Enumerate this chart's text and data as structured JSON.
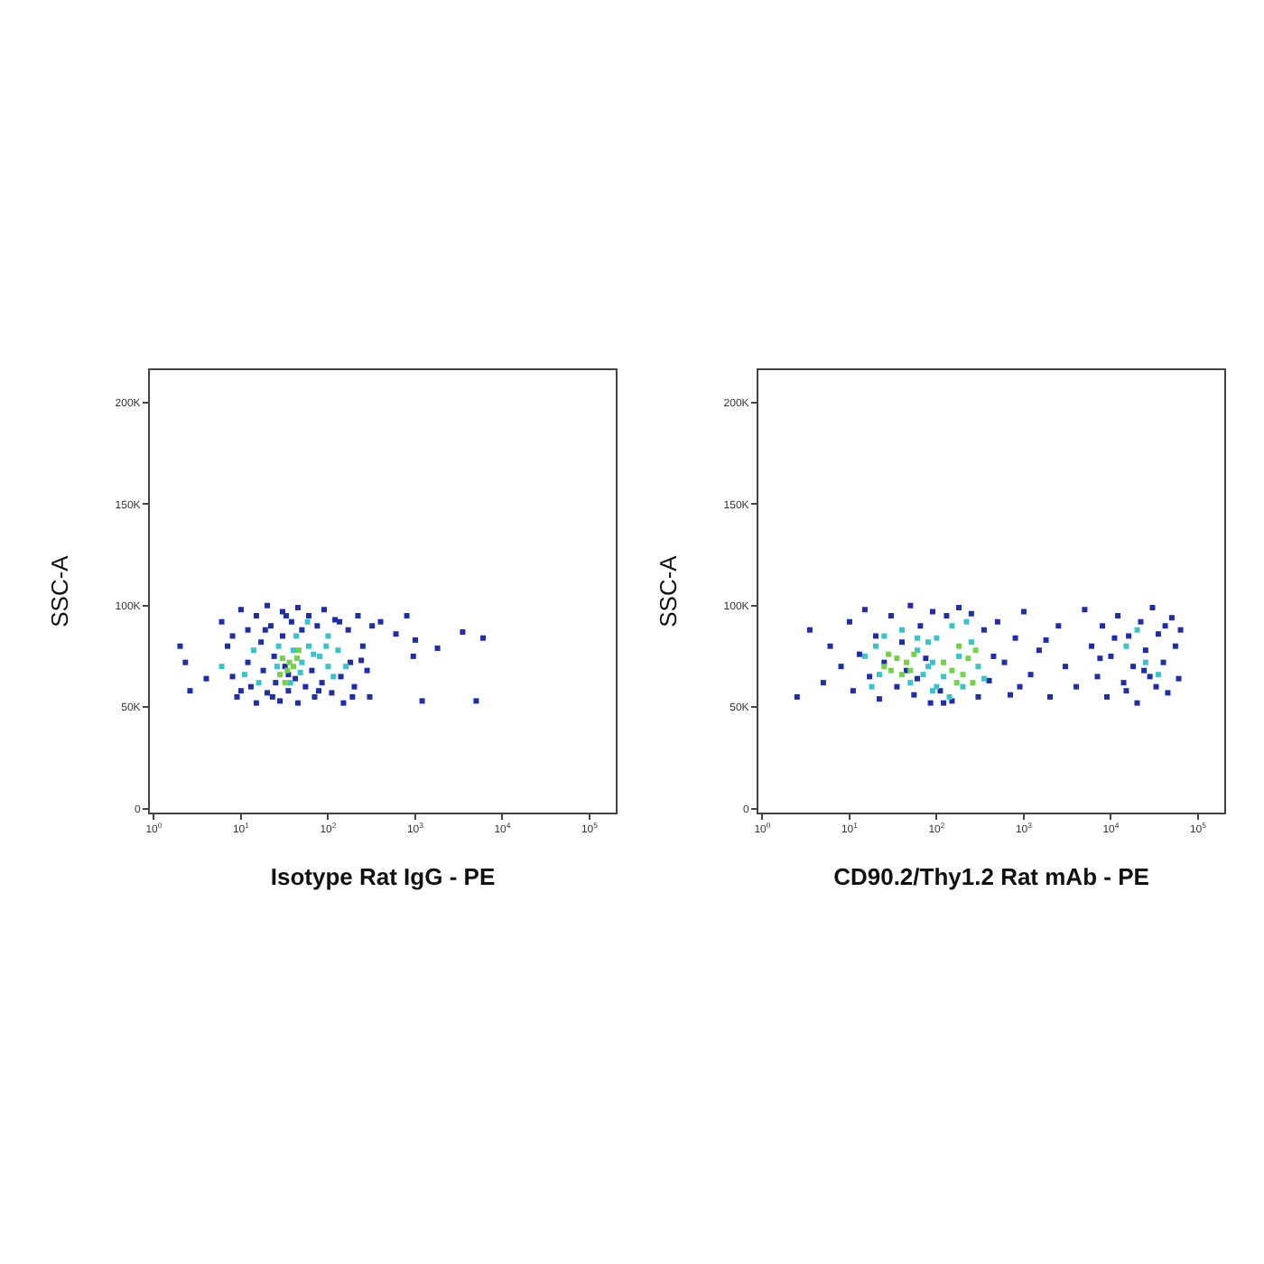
{
  "chart_data": [
    {
      "type": "scatter",
      "xlabel": "Isotype Rat IgG - PE",
      "ylabel": "SSC-A",
      "log": "x",
      "grid": false,
      "legend": false,
      "marker": "square",
      "xlim": [
        0.9,
        200000
      ],
      "ylim": [
        -2000,
        216000
      ],
      "xticks": [
        {
          "value": 1,
          "label": "10$^{0}$"
        },
        {
          "value": 10,
          "label": "10$^{1}$"
        },
        {
          "value": 100,
          "label": "10$^{2}$"
        },
        {
          "value": 1000,
          "label": "10$^{3}$"
        },
        {
          "value": 10000,
          "label": "10$^{4}$"
        },
        {
          "value": 100000,
          "label": "10$^{5}$"
        }
      ],
      "yticks": [
        0,
        {
          "value": 50000,
          "label": "50K"
        },
        {
          "value": 100000,
          "label": "100K"
        },
        {
          "value": 150000,
          "label": "150K"
        },
        {
          "value": 200000,
          "label": "200K"
        }
      ],
      "series": [
        {
          "color": "#1e2daa",
          "x": [
            2,
            2.3,
            2.6,
            4,
            6,
            7,
            8,
            9,
            10,
            12,
            12,
            13,
            15,
            15,
            17,
            18,
            20,
            20,
            22,
            24,
            25,
            28,
            30,
            30,
            32,
            35,
            35,
            38,
            42,
            45,
            45,
            50,
            55,
            60,
            65,
            70,
            75,
            85,
            90,
            110,
            120,
            140,
            150,
            170,
            180,
            200,
            220,
            250,
            280,
            300,
            320,
            400,
            600,
            800,
            950,
            1000,
            1200,
            1800,
            3500,
            5000,
            6000,
            8,
            10,
            19,
            23,
            33,
            78,
            135,
            190,
            240
          ],
          "values": [
            80000,
            72000,
            58000,
            64000,
            92000,
            80000,
            65000,
            55000,
            98000,
            88000,
            72000,
            60000,
            52000,
            95000,
            82000,
            68000,
            57000,
            100000,
            90000,
            75000,
            62000,
            53000,
            97000,
            85000,
            70000,
            66000,
            58000,
            92000,
            64000,
            52000,
            99000,
            88000,
            60000,
            95000,
            68000,
            55000,
            90000,
            62000,
            98000,
            57000,
            93000,
            65000,
            52000,
            88000,
            72000,
            60000,
            95000,
            80000,
            68000,
            55000,
            90000,
            92000,
            86000,
            95000,
            75000,
            83000,
            53000,
            79000,
            87000,
            53000,
            84000,
            85000,
            58000,
            88000,
            55000,
            95000,
            58000,
            92000,
            55000,
            73000
          ]
        },
        {
          "color": "#38c4c8",
          "x": [
            6,
            11,
            14,
            16,
            26,
            27,
            37,
            40,
            43,
            48,
            50,
            58,
            60,
            68,
            80,
            95,
            100,
            100,
            115,
            130,
            160
          ],
          "values": [
            70000,
            66000,
            78000,
            62000,
            70000,
            80000,
            62000,
            78000,
            85000,
            67000,
            72000,
            92000,
            80000,
            76000,
            75000,
            80000,
            85000,
            70000,
            65000,
            78000,
            70000
          ]
        },
        {
          "color": "#74d24a",
          "x": [
            28,
            30,
            32,
            34,
            36,
            40,
            44,
            46
          ],
          "values": [
            66000,
            74000,
            62000,
            68000,
            72000,
            70000,
            74000,
            78000
          ]
        }
      ]
    },
    {
      "type": "scatter",
      "xlabel": "CD90.2/Thy1.2 Rat mAb - PE",
      "ylabel": "SSC-A",
      "log": "x",
      "grid": false,
      "legend": false,
      "marker": "square",
      "xlim": [
        0.9,
        200000
      ],
      "ylim": [
        -2000,
        216000
      ],
      "xticks": [
        {
          "value": 1,
          "label": "10$^{0}$"
        },
        {
          "value": 10,
          "label": "10$^{1}$"
        },
        {
          "value": 100,
          "label": "10$^{2}$"
        },
        {
          "value": 1000,
          "label": "10$^{3}$"
        },
        {
          "value": 10000,
          "label": "10$^{4}$"
        },
        {
          "value": 100000,
          "label": "10$^{5}$"
        }
      ],
      "yticks": [
        0,
        {
          "value": 50000,
          "label": "50K"
        },
        {
          "value": 100000,
          "label": "100K"
        },
        {
          "value": 150000,
          "label": "150K"
        },
        {
          "value": 200000,
          "label": "200K"
        }
      ],
      "series": [
        {
          "color": "#1e2daa",
          "x": [
            2.5,
            3.5,
            5,
            6,
            8,
            10,
            11,
            13,
            15,
            17,
            20,
            22,
            25,
            30,
            35,
            40,
            45,
            50,
            55,
            65,
            75,
            85,
            90,
            110,
            130,
            150,
            180,
            250,
            300,
            350,
            400,
            500,
            600,
            700,
            800,
            1000,
            1200,
            1500,
            2000,
            2500,
            3000,
            4000,
            5000,
            6000,
            7000,
            8000,
            9000,
            10000,
            12000,
            14000,
            16000,
            18000,
            20000,
            22000,
            25000,
            28000,
            30000,
            35000,
            40000,
            45000,
            50000,
            55000,
            60000,
            63000,
            7500,
            11000,
            15000,
            24000,
            33000,
            42000,
            1800,
            900,
            450,
            120,
            60
          ],
          "values": [
            55000,
            88000,
            62000,
            80000,
            70000,
            92000,
            58000,
            76000,
            98000,
            65000,
            85000,
            54000,
            72000,
            95000,
            60000,
            82000,
            68000,
            100000,
            56000,
            90000,
            74000,
            52000,
            97000,
            58000,
            95000,
            53000,
            99000,
            96000,
            55000,
            88000,
            63000,
            92000,
            72000,
            56000,
            84000,
            97000,
            66000,
            78000,
            55000,
            90000,
            70000,
            60000,
            98000,
            80000,
            65000,
            90000,
            55000,
            75000,
            95000,
            62000,
            85000,
            70000,
            52000,
            92000,
            78000,
            65000,
            99000,
            86000,
            72000,
            57000,
            94000,
            80000,
            64000,
            88000,
            74000,
            84000,
            58000,
            68000,
            60000,
            90000,
            83000,
            60000,
            75000,
            52000,
            64000
          ]
        },
        {
          "color": "#38c4c8",
          "x": [
            15,
            18,
            20,
            22,
            25,
            40,
            50,
            60,
            60,
            70,
            80,
            80,
            90,
            90,
            100,
            100,
            120,
            140,
            150,
            180,
            200,
            220,
            250,
            300,
            350,
            15000,
            20000,
            25000,
            35000
          ],
          "values": [
            75000,
            60000,
            80000,
            66000,
            85000,
            88000,
            62000,
            84000,
            78000,
            66000,
            82000,
            70000,
            72000,
            58000,
            60000,
            84000,
            65000,
            55000,
            90000,
            75000,
            60000,
            92000,
            82000,
            70000,
            64000,
            80000,
            88000,
            72000,
            66000
          ]
        },
        {
          "color": "#74d24a",
          "x": [
            25,
            28,
            30,
            35,
            40,
            45,
            50,
            55,
            120,
            150,
            170,
            180,
            200,
            230,
            260,
            280
          ],
          "values": [
            70000,
            76000,
            68000,
            74000,
            66000,
            72000,
            68000,
            76000,
            72000,
            68000,
            62000,
            80000,
            66000,
            74000,
            62000,
            78000
          ]
        }
      ]
    }
  ]
}
